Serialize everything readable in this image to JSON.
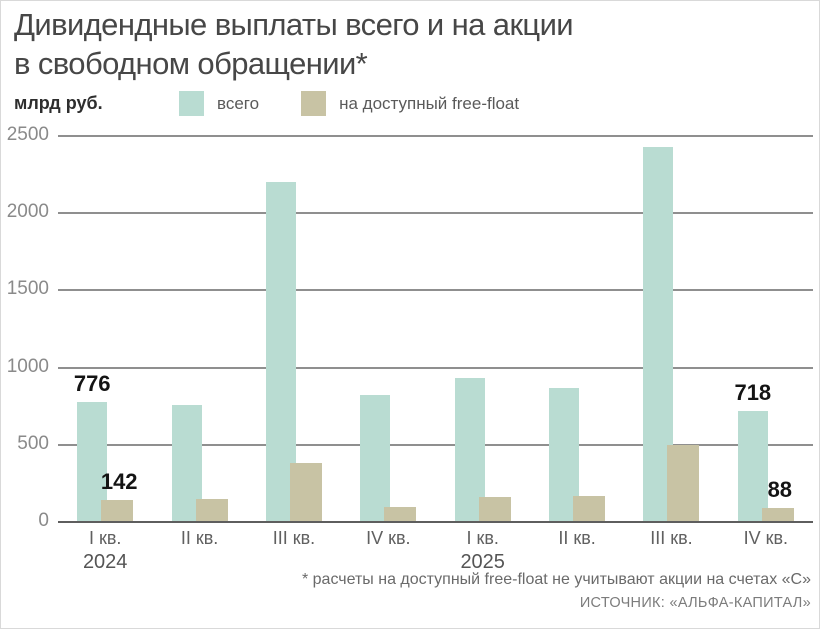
{
  "title": "Дивидендные выплаты всего и на акции\nв свободном обращении*",
  "unit": "млрд руб.",
  "legend": [
    {
      "label": "всего",
      "color": "#b9dcd2"
    },
    {
      "label": "на доступный free-float",
      "color": "#c8c3a4"
    }
  ],
  "chart_data": {
    "type": "bar",
    "categories": [
      {
        "label": "I кв.",
        "year": "2024"
      },
      {
        "label": "II кв.",
        "year": ""
      },
      {
        "label": "III кв.",
        "year": ""
      },
      {
        "label": "IV кв.",
        "year": ""
      },
      {
        "label": "I кв.",
        "year": "2025"
      },
      {
        "label": "II кв.",
        "year": ""
      },
      {
        "label": "III кв.",
        "year": ""
      },
      {
        "label": "IV кв.",
        "year": ""
      }
    ],
    "series": [
      {
        "name": "всего",
        "color": "#b9dcd2",
        "values": [
          776,
          760,
          2200,
          820,
          930,
          870,
          2430,
          718
        ]
      },
      {
        "name": "на доступный free-float",
        "color": "#c8c3a4",
        "values": [
          142,
          150,
          380,
          100,
          160,
          170,
          500,
          88
        ]
      }
    ],
    "ylabel": "млрд руб.",
    "ylim": [
      0,
      2500
    ],
    "yticks": [
      0,
      500,
      1000,
      1500,
      2000,
      2500
    ],
    "grid": true,
    "legend_position": "top",
    "value_labels": [
      {
        "category_index": 0,
        "series_index": 0,
        "text": "776"
      },
      {
        "category_index": 0,
        "series_index": 1,
        "text": "142"
      },
      {
        "category_index": 7,
        "series_index": 0,
        "text": "718"
      },
      {
        "category_index": 7,
        "series_index": 1,
        "text": "88"
      }
    ]
  },
  "footnote": "* расчеты на доступный free-float не учитывают акции на счетах «С»",
  "source": "ИСТОЧНИК: «АЛЬФА-КАПИТАЛ»"
}
